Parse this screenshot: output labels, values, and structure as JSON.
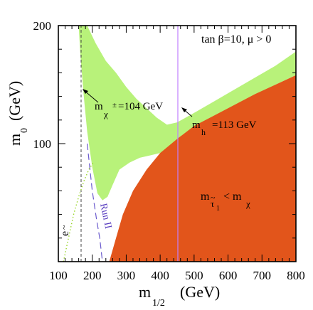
{
  "chart_data": {
    "type": "area",
    "xlabel": {
      "main": "m",
      "sub": "1/2",
      "unit": "(GeV)"
    },
    "ylabel": {
      "main": "m",
      "sub": "0",
      "unit": "(GeV)"
    },
    "xlim": [
      100,
      800
    ],
    "ylim": [
      0,
      200
    ],
    "xticks": [
      100,
      200,
      300,
      400,
      500,
      600,
      700,
      800
    ],
    "yticks": [
      100,
      200
    ],
    "grid": false,
    "regions": [
      {
        "name": "m_h = 113 GeV band",
        "color": "#b8f27a",
        "upper": [
          [
            170,
            200
          ],
          [
            185,
            200
          ],
          [
            210,
            185
          ],
          [
            240,
            170
          ],
          [
            270,
            160
          ],
          [
            300,
            148
          ],
          [
            330,
            138
          ],
          [
            360,
            130
          ],
          [
            390,
            122
          ],
          [
            420,
            116
          ],
          [
            450,
            118
          ],
          [
            500,
            126
          ],
          [
            560,
            136
          ],
          [
            620,
            146
          ],
          [
            680,
            156
          ],
          [
            740,
            166
          ],
          [
            800,
            178
          ]
        ],
        "lower": [
          [
            800,
            158
          ],
          [
            740,
            150
          ],
          [
            680,
            140
          ],
          [
            620,
            130
          ],
          [
            560,
            120
          ],
          [
            500,
            110
          ],
          [
            460,
            104
          ],
          [
            430,
            97
          ],
          [
            400,
            92
          ],
          [
            370,
            90
          ],
          [
            340,
            88
          ],
          [
            310,
            84
          ],
          [
            280,
            78
          ],
          [
            260,
            65
          ],
          [
            245,
            55
          ],
          [
            230,
            52
          ],
          [
            215,
            58
          ],
          [
            200,
            80
          ],
          [
            185,
            110
          ],
          [
            175,
            140
          ],
          [
            165,
            175
          ],
          [
            160,
            200
          ]
        ]
      },
      {
        "name": "stau LSP excluded",
        "color": "#e2551b",
        "boundary": [
          [
            250,
            0
          ],
          [
            270,
            20
          ],
          [
            290,
            40
          ],
          [
            320,
            60
          ],
          [
            360,
            78
          ],
          [
            400,
            92
          ],
          [
            450,
            104
          ],
          [
            500,
            115
          ],
          [
            560,
            124
          ],
          [
            620,
            133
          ],
          [
            680,
            142
          ],
          [
            740,
            150
          ],
          [
            800,
            158
          ],
          [
            800,
            0
          ]
        ]
      }
    ],
    "lines": [
      {
        "name": "chargino_104",
        "style": "dashed",
        "color": "#444444",
        "points": [
          [
            167,
            0
          ],
          [
            167,
            200
          ]
        ]
      },
      {
        "name": "higgs_113",
        "style": "solid",
        "color": "#c080ff",
        "points": [
          [
            452,
            0
          ],
          [
            452,
            200
          ]
        ]
      },
      {
        "name": "run_ii",
        "style": "dashed",
        "color": "#6a5acd",
        "points": [
          [
            185,
            100
          ],
          [
            200,
            60
          ],
          [
            213,
            35
          ],
          [
            222,
            20
          ],
          [
            230,
            0
          ]
        ]
      },
      {
        "name": "selectron",
        "style": "dotted",
        "color": "#9ad62a",
        "points": [
          [
            115,
            0
          ],
          [
            130,
            20
          ],
          [
            145,
            40
          ],
          [
            160,
            55
          ],
          [
            175,
            68
          ],
          [
            190,
            78
          ],
          [
            205,
            85
          ]
        ]
      }
    ],
    "annotations": {
      "params": "tan  β=10, μ > 0",
      "chargino": {
        "m": "m",
        "sub": "χ",
        "sup": "±",
        "value": "=104 GeV"
      },
      "higgs": {
        "m": "m",
        "sub": "h",
        "value": "=113 GeV"
      },
      "stau": {
        "left": "m",
        "sub": "τ",
        "subsub": "1",
        "op": "< m",
        "right_sub": "χ"
      },
      "runii": "Run II",
      "selectron": "e"
    }
  }
}
